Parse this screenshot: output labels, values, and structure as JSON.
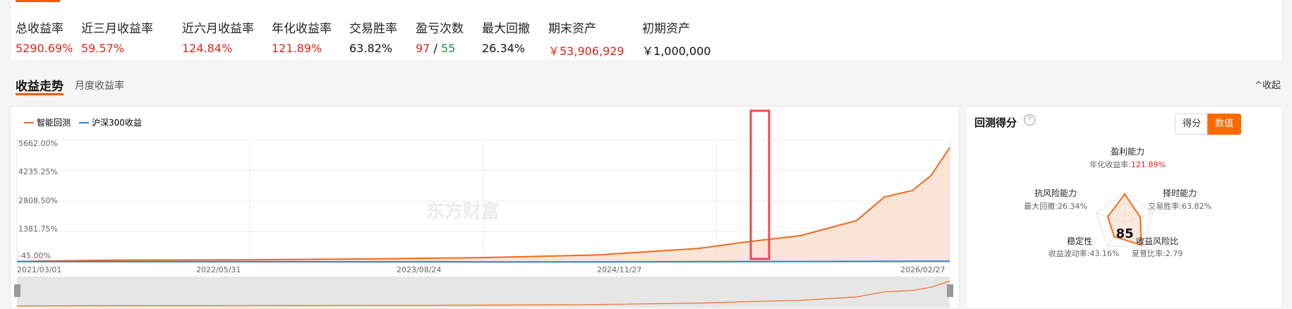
{
  "stats": [
    {
      "label": "总收益率",
      "value": "5290.69%",
      "color": "red"
    },
    {
      "label": "近三月收益率",
      "value": "59.57%",
      "color": "red"
    },
    {
      "label": "近六月收益率",
      "value": "124.84%",
      "color": "red"
    },
    {
      "label": "年化收益率",
      "value": "121.89%",
      "color": "red"
    },
    {
      "label": "交易胜率",
      "value": "63.82%",
      "color": "blk"
    },
    {
      "label": "盈亏次数",
      "wins": "97",
      "sep": "/",
      "losses": "55"
    },
    {
      "label": "最大回撤",
      "value": "26.34%",
      "color": "blk"
    },
    {
      "label": "期末资产",
      "value": "￥53,906,929",
      "color": "red"
    },
    {
      "label": "初期资产",
      "value": "￥1,000,000",
      "color": "blk"
    }
  ],
  "tabs": {
    "trend": "收益走势",
    "monthly": "月度收益率"
  },
  "collapse_label": "收起",
  "chart": {
    "legend": [
      {
        "name": "智能回测",
        "color": "#f06a1d"
      },
      {
        "name": "沪深300收益",
        "color": "#2f7fe0"
      }
    ],
    "y_ticks": [
      "5662.00%",
      "4235.25%",
      "2808.50%",
      "1381.75%",
      "-45.00%"
    ],
    "x_ticks": [
      "2021/03/01",
      "2022/05/31",
      "2023/08/24",
      "2024/11/27",
      "2026/02/27"
    ],
    "watermark": "东方财富"
  },
  "chart_data": {
    "type": "line",
    "x": [
      "2021/03/01",
      "2021/09",
      "2022/05/31",
      "2022/11",
      "2023/08/24",
      "2024/04",
      "2024/11/27",
      "2025/02",
      "2025/05",
      "2025/08",
      "2025/10",
      "2025/12",
      "2026/01",
      "2026/02/27"
    ],
    "series": [
      {
        "name": "智能回测",
        "values": [
          0,
          60,
          80,
          120,
          180,
          300,
          600,
          900,
          1200,
          1900,
          3000,
          3300,
          4000,
          5290.69
        ]
      },
      {
        "name": "沪深300收益",
        "values": [
          0,
          -5,
          -10,
          -15,
          -20,
          -20,
          -10,
          -5,
          0,
          5,
          8,
          10,
          12,
          15
        ]
      }
    ],
    "ylim": [
      -45,
      5662
    ],
    "grid": true,
    "legend": "top-left"
  },
  "score": {
    "title": "回测得分",
    "buttons": {
      "score": "得分",
      "value": "数值"
    },
    "total": "85",
    "axes": [
      {
        "name": "盈利能力",
        "metric": "年化收益率:",
        "value": "121.89%"
      },
      {
        "name": "择时能力",
        "metric": "交易胜率:",
        "value": "63.82%"
      },
      {
        "name": "收益风险比",
        "metric": "夏普比率:",
        "value": "2.79"
      },
      {
        "name": "稳定性",
        "metric": "收益波动率:",
        "value": "43.16%"
      },
      {
        "name": "抗风险能力",
        "metric": "最大回撤:",
        "value": "26.34%"
      }
    ]
  }
}
